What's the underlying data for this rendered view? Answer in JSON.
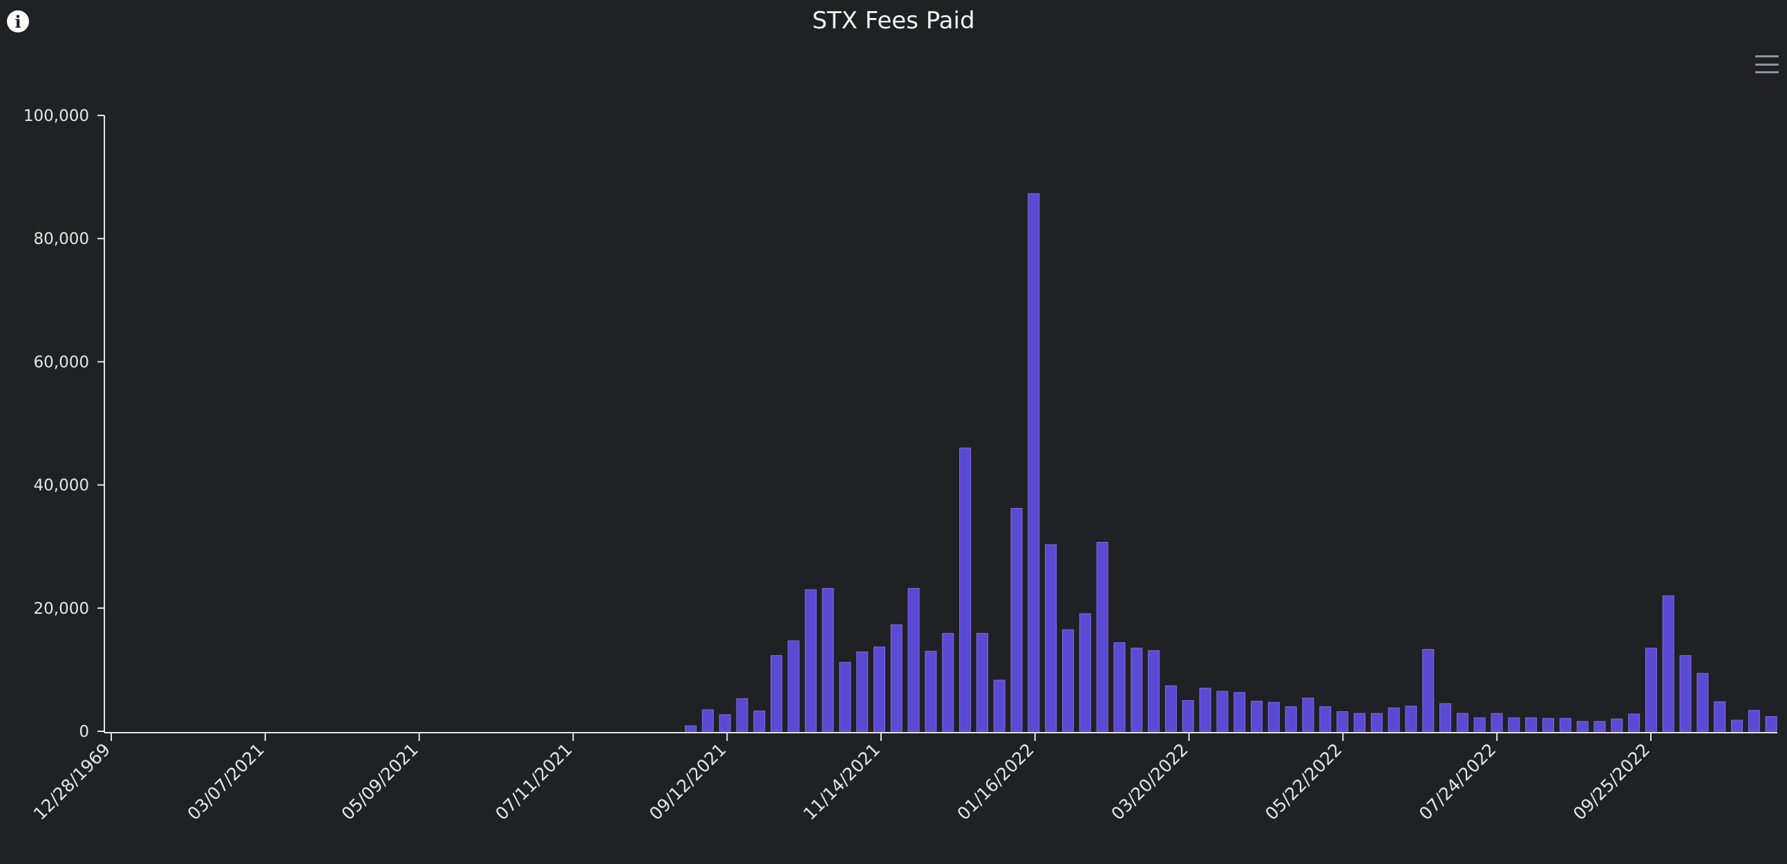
{
  "info_icon": "info-circle-icon",
  "menu_icon": "hamburger-menu-icon",
  "chart_data": {
    "type": "bar",
    "title": "STX Fees Paid",
    "xlabel": "",
    "ylabel": "",
    "ylim": [
      0,
      100000
    ],
    "y_ticks": [
      0,
      20000,
      40000,
      60000,
      80000,
      100000
    ],
    "y_tick_labels": [
      "0",
      "20,000",
      "40,000",
      "60,000",
      "80,000",
      "100,000"
    ],
    "x_tick_labels": [
      "12/28/1969",
      "03/07/2021",
      "05/09/2021",
      "07/11/2021",
      "09/12/2021",
      "11/14/2021",
      "01/16/2022",
      "03/20/2022",
      "05/22/2022",
      "07/24/2022",
      "09/25/2022"
    ],
    "grid": false,
    "legend": "none",
    "bar_color": "#5b4bd4",
    "values": [
      900,
      3500,
      2700,
      5300,
      3300,
      12300,
      14700,
      23000,
      23200,
      11200,
      12900,
      13700,
      17300,
      23200,
      13000,
      15900,
      46000,
      15900,
      8300,
      36200,
      87300,
      30300,
      16500,
      19100,
      30700,
      14400,
      13500,
      13100,
      7400,
      5000,
      7000,
      6500,
      6300,
      4900,
      4700,
      4000,
      5400,
      4000,
      3200,
      2900,
      2900,
      3800,
      4100,
      13300,
      4500,
      2900,
      2200,
      2900,
      2200,
      2200,
      2100,
      2100,
      1600,
      1600,
      2000,
      2800,
      13500,
      22000,
      12300,
      9400,
      4800,
      1800,
      3400,
      2400
    ]
  }
}
